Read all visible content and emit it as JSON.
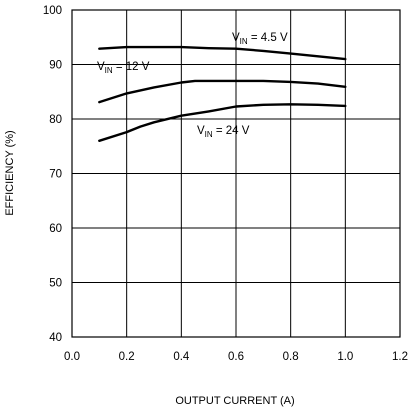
{
  "chart_data": {
    "type": "line",
    "title": "",
    "xlabel": "OUTPUT CURRENT (A)",
    "ylabel": "EFFICIENCY (%)",
    "xlim": [
      0,
      1.2
    ],
    "ylim": [
      40,
      100
    ],
    "xticks": [
      0.0,
      0.2,
      0.4,
      0.6,
      0.8,
      1.0,
      1.2
    ],
    "yticks": [
      40,
      50,
      60,
      70,
      80,
      90,
      100
    ],
    "xtick_labels": [
      "0.0",
      "0.2",
      "0.4",
      "0.6",
      "0.8",
      "1.0",
      "1.2"
    ],
    "ytick_labels": [
      "40",
      "50",
      "60",
      "70",
      "80",
      "90",
      "100"
    ],
    "grid": true,
    "legend": "none",
    "series": [
      {
        "label_main": "V",
        "label_sub": "IN",
        "label_rest": " = 4.5 V",
        "x": [
          0.1,
          0.2,
          0.3,
          0.4,
          0.5,
          0.6,
          0.7,
          0.8,
          0.9,
          1.0
        ],
        "y": [
          92.9,
          93.2,
          93.2,
          93.2,
          93.0,
          92.9,
          92.5,
          92.0,
          91.5,
          91.0
        ]
      },
      {
        "label_main": "V",
        "label_sub": "IN",
        "label_rest": " = 12 V",
        "x": [
          0.1,
          0.2,
          0.3,
          0.4,
          0.45,
          0.5,
          0.6,
          0.7,
          0.8,
          0.9,
          1.0
        ],
        "y": [
          83.1,
          84.7,
          85.8,
          86.7,
          87.0,
          87.0,
          87.0,
          87.0,
          86.8,
          86.5,
          85.9
        ]
      },
      {
        "label_main": "V",
        "label_sub": "IN",
        "label_rest": " = 24 V",
        "x": [
          0.1,
          0.2,
          0.25,
          0.3,
          0.4,
          0.5,
          0.6,
          0.7,
          0.8,
          0.9,
          1.0
        ],
        "y": [
          76.0,
          77.6,
          78.6,
          79.4,
          80.6,
          81.4,
          82.3,
          82.6,
          82.7,
          82.6,
          82.4
        ]
      }
    ]
  }
}
